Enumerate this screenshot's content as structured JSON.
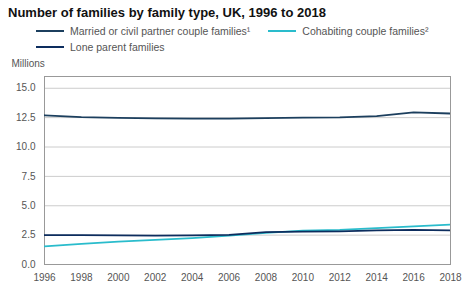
{
  "chart_data": {
    "type": "line",
    "title": "Number of families by family type, UK, 1996 to 2018",
    "ylabel": "Millions",
    "x": [
      1996,
      1998,
      2000,
      2002,
      2004,
      2006,
      2008,
      2010,
      2012,
      2014,
      2016,
      2018
    ],
    "series": [
      {
        "name": "Married or civil partner couple families¹",
        "color": "#1c3f5e",
        "values": [
          12.7,
          12.55,
          12.48,
          12.44,
          12.42,
          12.41,
          12.45,
          12.5,
          12.52,
          12.62,
          12.95,
          12.85
        ]
      },
      {
        "name": "Cohabiting couple families²",
        "color": "#2abccc",
        "values": [
          1.55,
          1.75,
          1.95,
          2.1,
          2.25,
          2.45,
          2.7,
          2.88,
          2.95,
          3.1,
          3.25,
          3.4
        ]
      },
      {
        "name": "Lone parent families",
        "color": "#0d2d5e",
        "values": [
          2.5,
          2.5,
          2.48,
          2.45,
          2.48,
          2.52,
          2.75,
          2.8,
          2.82,
          2.9,
          2.95,
          2.9
        ]
      }
    ],
    "xlim": [
      1996,
      2018
    ],
    "xticks": [
      1996,
      1998,
      2000,
      2002,
      2004,
      2006,
      2008,
      2010,
      2012,
      2014,
      2016,
      2018
    ],
    "ylim": [
      0.0,
      16.0
    ],
    "yticks": [
      {
        "value": 0,
        "label": "0.0"
      },
      2.5,
      {
        "value": 5,
        "label": "5.0"
      },
      7.5,
      {
        "value": 10,
        "label": "10.0"
      },
      12.5,
      {
        "value": 15,
        "label": "15.0"
      }
    ],
    "grid": "y",
    "legend": "top"
  }
}
